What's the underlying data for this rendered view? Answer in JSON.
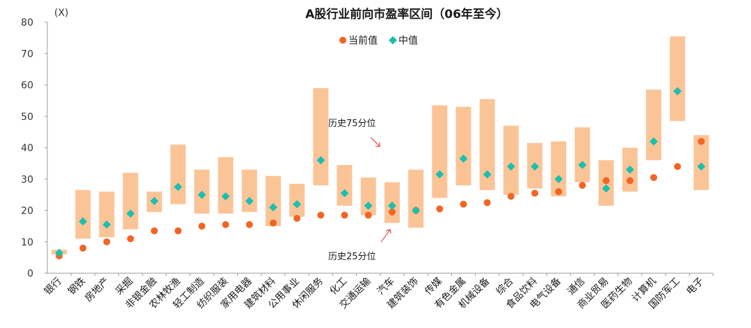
{
  "chart_data": {
    "type": "floating-bar-with-markers",
    "title": "A股行业前向市盈率区间（06年至今）",
    "ylabel": "(X)",
    "ylim": [
      0,
      80
    ],
    "yticks": [
      0,
      10,
      20,
      30,
      40,
      50,
      60,
      70,
      80
    ],
    "grid": false,
    "legend_position": "top-center",
    "colors": {
      "range_bar": "#FBC497",
      "current": "#F26522",
      "median": "#1BBFAF"
    },
    "legend": [
      {
        "key": "current",
        "label": "当前值"
      },
      {
        "key": "median",
        "label": "中值"
      }
    ],
    "annotations": {
      "p75_label": "历史75分位",
      "p25_label": "历史25分位"
    },
    "categories": [
      "银行",
      "钢铁",
      "房地产",
      "采掘",
      "非银金融",
      "农林牧渔",
      "轻工制造",
      "纺织服装",
      "家用电器",
      "建筑材料",
      "公用事业",
      "休闲服务",
      "化工",
      "交通运输",
      "汽车",
      "建筑装饰",
      "传媒",
      "有色金属",
      "机械设备",
      "综合",
      "食品饮料",
      "电气设备",
      "通信",
      "商业贸易",
      "医药生物",
      "计算机",
      "国防军工",
      "电子"
    ],
    "series": [
      {
        "name": "历史25分位",
        "key": "p25",
        "values": [
          6.0,
          11.0,
          11.5,
          14.0,
          19.5,
          22.0,
          19.0,
          19.0,
          19.5,
          15.0,
          18.0,
          28.0,
          21.5,
          18.5,
          16.0,
          14.5,
          24.0,
          28.0,
          26.5,
          25.0,
          27.0,
          24.5,
          29.0,
          21.5,
          26.0,
          36.0,
          48.5,
          26.5
        ]
      },
      {
        "name": "历史75分位",
        "key": "p75",
        "values": [
          7.5,
          26.5,
          26.0,
          32.0,
          26.0,
          41.0,
          33.0,
          37.0,
          33.0,
          31.0,
          28.5,
          59.0,
          34.5,
          30.5,
          29.0,
          33.0,
          53.5,
          53.0,
          55.5,
          47.0,
          41.5,
          42.0,
          46.5,
          36.0,
          40.0,
          58.5,
          75.5,
          44.0
        ]
      },
      {
        "name": "中值",
        "key": "median",
        "values": [
          6.5,
          16.5,
          15.5,
          19.0,
          23.0,
          27.5,
          25.0,
          24.5,
          23.0,
          21.0,
          22.0,
          36.0,
          25.5,
          21.5,
          21.5,
          20.0,
          31.5,
          36.5,
          31.5,
          34.0,
          34.0,
          30.0,
          34.5,
          27.0,
          33.0,
          42.0,
          58.0,
          34.0
        ]
      },
      {
        "name": "当前值",
        "key": "current",
        "values": [
          5.5,
          8.0,
          10.0,
          11.0,
          13.5,
          13.5,
          15.0,
          15.5,
          15.5,
          16.0,
          17.5,
          18.5,
          18.5,
          18.5,
          19.5,
          20.0,
          20.5,
          22.0,
          22.5,
          24.5,
          25.5,
          26.0,
          28.0,
          29.5,
          29.5,
          30.5,
          34.0,
          42.0
        ]
      }
    ]
  }
}
